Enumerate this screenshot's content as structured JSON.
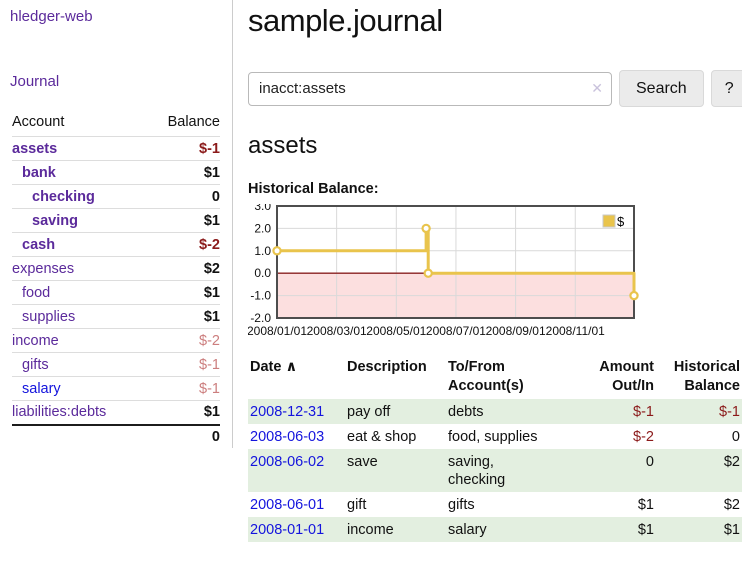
{
  "app": {
    "brand": "hledger-web",
    "nav_journal": "Journal"
  },
  "sidebar": {
    "header": {
      "account": "Account",
      "balance": "Balance"
    },
    "accounts": [
      {
        "name": "assets",
        "balance": "$-1"
      },
      {
        "name": "bank",
        "balance": "$1"
      },
      {
        "name": "checking",
        "balance": "0"
      },
      {
        "name": "saving",
        "balance": "$1"
      },
      {
        "name": "cash",
        "balance": "$-2"
      },
      {
        "name": "expenses",
        "balance": "$2"
      },
      {
        "name": "food",
        "balance": "$1"
      },
      {
        "name": "supplies",
        "balance": "$1"
      },
      {
        "name": "income",
        "balance": "$-2"
      },
      {
        "name": "gifts",
        "balance": "$-1"
      },
      {
        "name": "salary",
        "balance": "$-1"
      },
      {
        "name": "liabilities:debts",
        "balance": "$1"
      }
    ],
    "total": "0"
  },
  "main": {
    "title": "sample.journal",
    "search": {
      "value": "inacct:assets",
      "clear_icon": "✕",
      "button_label": "Search",
      "help_label": "?"
    },
    "account_heading": "assets",
    "chart_label": "Historical Balance:"
  },
  "chart_data": {
    "type": "line",
    "title": "Historical Balance",
    "style": "step",
    "xlim": [
      0,
      11.97
    ],
    "ylim": [
      -2,
      3
    ],
    "grid": true,
    "legend_position": "top-right",
    "series": [
      {
        "name": "$",
        "color": "#e9c44c",
        "points": [
          {
            "date": "2008-01-01",
            "x": 0,
            "y": 1
          },
          {
            "date": "2008-06-01",
            "x": 5.0,
            "y": 2
          },
          {
            "date": "2008-06-03",
            "x": 5.07,
            "y": 0
          },
          {
            "date": "2008-12-31",
            "x": 11.97,
            "y": -1
          }
        ]
      }
    ],
    "y_ticks": [
      {
        "value": 3,
        "label": "3.0"
      },
      {
        "value": 2,
        "label": "2.0"
      },
      {
        "value": 1,
        "label": "1.0"
      },
      {
        "value": 0,
        "label": "0.0"
      },
      {
        "value": -1,
        "label": "-1.0"
      },
      {
        "value": -2,
        "label": "-2.0"
      }
    ],
    "x_ticks": [
      {
        "x": 0,
        "label": "2008/01/01"
      },
      {
        "x": 2,
        "label": "2008/03/01"
      },
      {
        "x": 4,
        "label": "2008/05/01"
      },
      {
        "x": 6,
        "label": "2008/07/01"
      },
      {
        "x": 8,
        "label": "2008/09/01"
      },
      {
        "x": 10,
        "label": "2008/11/01"
      }
    ],
    "negative_region_color": "#fcdfdf",
    "zero_line_color": "#8b2020",
    "legend": {
      "label": "$",
      "swatch_color": "#e9c44c"
    }
  },
  "register": {
    "headers": {
      "date": "Date",
      "sort_indicator": "∧",
      "description": "Description",
      "accounts": "To/From Account(s)",
      "amount": "Amount Out/In",
      "balance": "Historical Balance"
    },
    "rows": [
      {
        "date": "2008-12-31",
        "description": "pay off",
        "accounts": "debts",
        "amount": "$-1",
        "balance": "$-1"
      },
      {
        "date": "2008-06-03",
        "description": "eat & shop",
        "accounts": "food, supplies",
        "amount": "$-2",
        "balance": "0"
      },
      {
        "date": "2008-06-02",
        "description": "save",
        "accounts": "saving,\nchecking",
        "amount": "0",
        "balance": "$2"
      },
      {
        "date": "2008-06-01",
        "description": "gift",
        "accounts": "gifts",
        "amount": "$1",
        "balance": "$2"
      },
      {
        "date": "2008-01-01",
        "description": "income",
        "accounts": "salary",
        "amount": "$1",
        "balance": "$1"
      }
    ]
  },
  "colors": {
    "link_purple": "#5b2a9b",
    "link_blue": "#1414dd",
    "negative_strong": "#8b1a1a",
    "negative_soft": "#cc7e7e",
    "row_stripe_green": "#e3efe0",
    "chart_gold": "#e9c44c",
    "chart_negative_pink": "#fcdfdf"
  }
}
